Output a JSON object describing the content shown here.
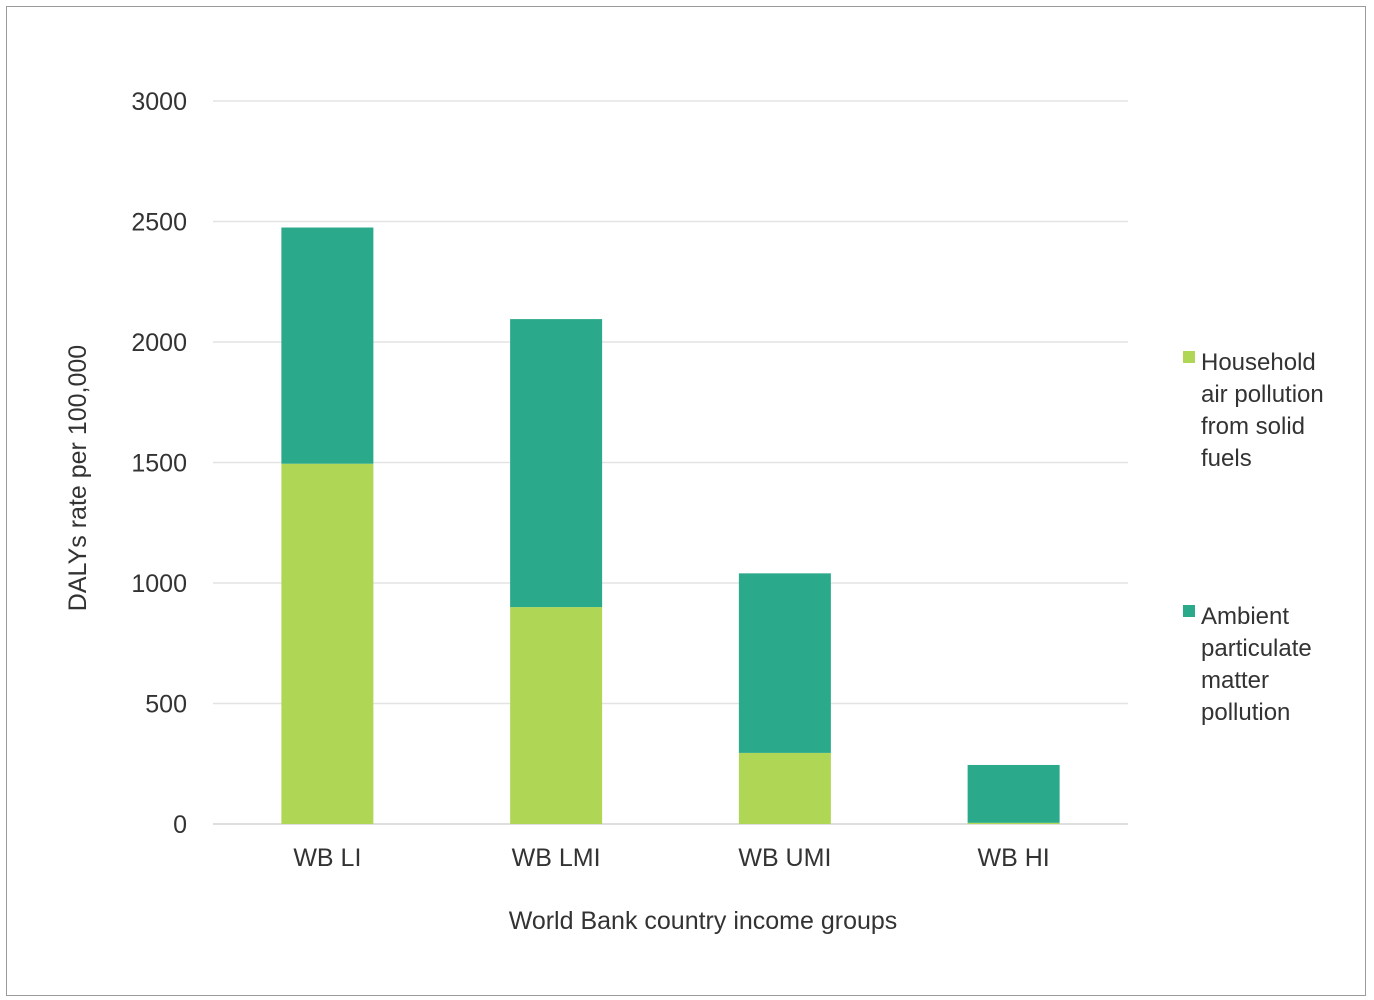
{
  "chart_data": {
    "type": "bar",
    "stacked": true,
    "categories": [
      "WB LI",
      "WB LMI",
      "WB UMI",
      "WB HI"
    ],
    "series": [
      {
        "name": "Household air pollution from solid fuels",
        "legend_lines": [
          "Household",
          "air pollution",
          "from solid",
          "fuels"
        ],
        "color": "#afd755",
        "values": [
          1495,
          900,
          295,
          5
        ]
      },
      {
        "name": "Ambient particulate matter pollution",
        "legend_lines": [
          "Ambient",
          "particulate",
          "matter",
          "pollution"
        ],
        "color": "#2aaa8a",
        "values": [
          980,
          1195,
          745,
          240
        ]
      }
    ],
    "xlabel": "World Bank country income groups",
    "ylabel": "DALYs rate per 100,000",
    "ylim": [
      0,
      3000
    ],
    "yticks": [
      0,
      500,
      1000,
      1500,
      2000,
      2500,
      3000
    ],
    "grid": true,
    "legend_position": "right"
  }
}
